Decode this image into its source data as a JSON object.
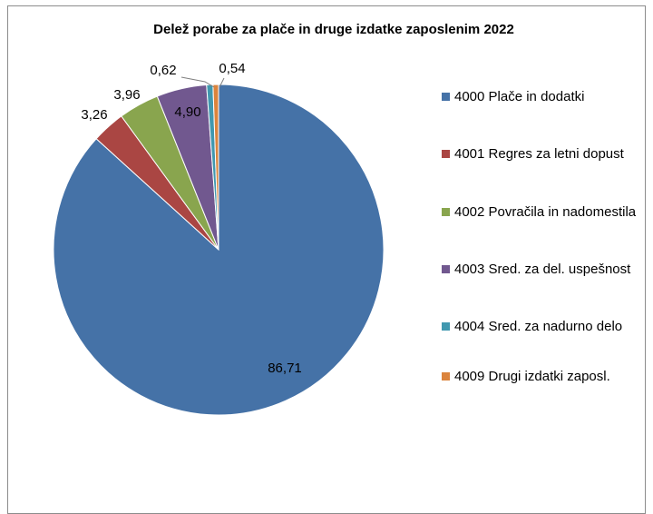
{
  "chart_data": {
    "type": "pie",
    "title": "Delež porabe za plače in druge izdatke zaposlenim 2022",
    "legend_position": "right",
    "slices": [
      {
        "label": "4000 Plače in dodatki",
        "value": 86.71,
        "value_label": "86,71",
        "color": "#4572A7"
      },
      {
        "label": "4001 Regres za letni dopust",
        "value": 3.26,
        "value_label": "3,26",
        "color": "#AA4643"
      },
      {
        "label": "4002 Povračila in nadomestila",
        "value": 3.96,
        "value_label": "3,96",
        "color": "#89A54E"
      },
      {
        "label": "4003 Sred. za del. uspešnost",
        "value": 4.9,
        "value_label": "4,90",
        "color": "#71588F"
      },
      {
        "label": "4004 Sred. za nadurno delo",
        "value": 0.62,
        "value_label": "0,62",
        "color": "#4198AF"
      },
      {
        "label": "4009 Drugi izdatki zaposl.",
        "value": 0.54,
        "value_label": "0,54",
        "color": "#DB843D"
      }
    ]
  }
}
